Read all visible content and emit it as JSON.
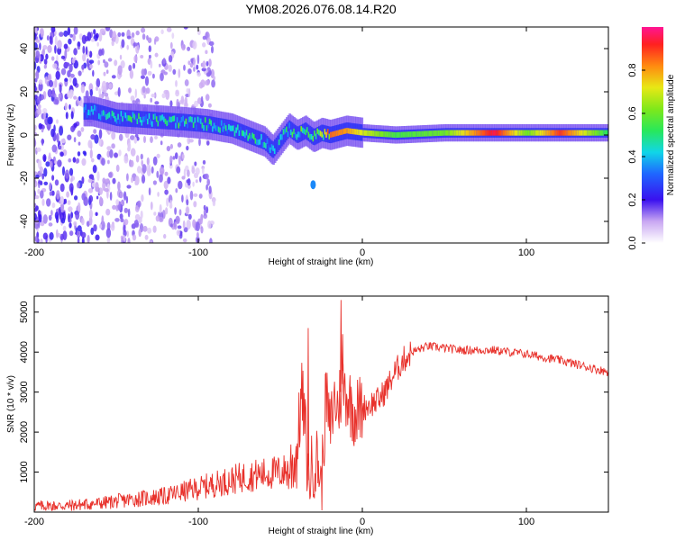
{
  "title": "YM08.2026.076.08.14.R20",
  "colors": {
    "snr_line": "#e8312b",
    "background": "#ffffff",
    "axis": "#000000"
  },
  "chart_data": [
    {
      "type": "heatmap",
      "name": "spectrogram",
      "xlabel": "Height of straight line (km)",
      "ylabel": "Frequency (Hz)",
      "xlim": [
        -200,
        150
      ],
      "ylim": [
        -50,
        50
      ],
      "xticks": [
        -200,
        -100,
        0,
        100
      ],
      "yticks": [
        -40,
        -20,
        0,
        20,
        40
      ],
      "colorbar": {
        "label": "Normalized spectral amplitude",
        "range": [
          0,
          1
        ],
        "ticks": [
          "0.0",
          "0.2",
          "0.4",
          "0.6",
          "0.8"
        ],
        "tick_values": [
          0.0,
          0.2,
          0.4,
          0.6,
          0.8
        ]
      },
      "ridge": {
        "x": [
          -165,
          -150,
          -130,
          -110,
          -95,
          -80,
          -70,
          -60,
          -55,
          -50,
          -45,
          -40,
          -35,
          -30,
          -25,
          -20,
          -10,
          0,
          20,
          50,
          80,
          100,
          120,
          150
        ],
        "freq": [
          11,
          8,
          7,
          6,
          5,
          3,
          0,
          -3,
          -7,
          -2,
          3,
          0,
          2,
          -1,
          1,
          0,
          2,
          1,
          0,
          1,
          1,
          1,
          1,
          1
        ],
        "amplitude": [
          0.4,
          0.5,
          0.5,
          0.55,
          0.5,
          0.45,
          0.5,
          0.45,
          0.4,
          0.45,
          0.5,
          0.55,
          0.6,
          0.7,
          0.75,
          0.85,
          0.8,
          0.7,
          0.55,
          0.6,
          0.95,
          0.6,
          0.9,
          0.5
        ]
      },
      "isolated_blob": {
        "x": -30,
        "freq": -23,
        "amplitude": 0.35
      }
    },
    {
      "type": "line",
      "name": "snr",
      "xlabel": "Height of straight line (km)",
      "ylabel": "SNR (10 * v/v)",
      "xlim": [
        -200,
        150
      ],
      "ylim": [
        0,
        5400
      ],
      "xticks": [
        -200,
        -100,
        0,
        100
      ],
      "yticks": [
        1000,
        2000,
        3000,
        4000,
        5000
      ],
      "series": [
        {
          "name": "SNR",
          "x": [
            -200,
            -180,
            -160,
            -140,
            -120,
            -110,
            -100,
            -90,
            -80,
            -70,
            -60,
            -50,
            -45,
            -40,
            -37,
            -35,
            -33,
            -30,
            -27,
            -25,
            -22,
            -20,
            -17,
            -15,
            -12,
            -10,
            -5,
            0,
            5,
            10,
            15,
            20,
            25,
            30,
            40,
            50,
            60,
            80,
            100,
            120,
            140,
            150
          ],
          "y": [
            150,
            160,
            220,
            320,
            400,
            500,
            600,
            700,
            800,
            900,
            950,
            1000,
            1050,
            1400,
            3000,
            2200,
            800,
            1200,
            1300,
            600,
            3000,
            2000,
            2800,
            2600,
            3200,
            3000,
            2500,
            2600,
            2700,
            2800,
            3100,
            3500,
            3800,
            4000,
            4150,
            4100,
            4050,
            4050,
            3950,
            3800,
            3600,
            3500
          ],
          "spikes": [
            {
              "x": -33,
              "y": 4600
            },
            {
              "x": -13,
              "y": 5300
            },
            {
              "x": -12,
              "y": 4450
            }
          ]
        }
      ]
    }
  ]
}
